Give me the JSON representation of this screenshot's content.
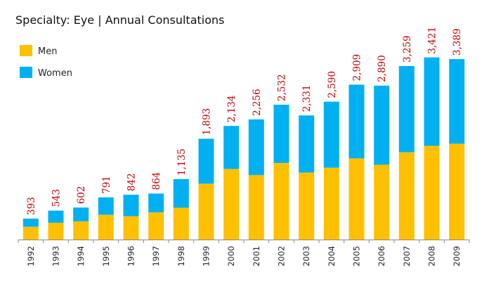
{
  "chart_data": {
    "type": "bar",
    "stacked": true,
    "title": "Specialty: Eye  |  Annual Consultations",
    "xlabel": "",
    "ylabel": "",
    "ylim": [
      0,
      3600
    ],
    "grid": false,
    "legend_position": "top-left",
    "categories": [
      "1992",
      "1993",
      "1994",
      "1995",
      "1996",
      "1997",
      "1998",
      "1999",
      "2000",
      "2001",
      "2002",
      "2003",
      "2004",
      "2005",
      "2006",
      "2007",
      "2008",
      "2009"
    ],
    "series": [
      {
        "name": "Men",
        "color": "#FFC000",
        "values": [
          240,
          315,
          345,
          465,
          440,
          510,
          600,
          1050,
          1325,
          1210,
          1440,
          1260,
          1350,
          1525,
          1405,
          1640,
          1760,
          1800
        ]
      },
      {
        "name": "Women",
        "color": "#00B0F0",
        "values": [
          153,
          228,
          257,
          326,
          402,
          354,
          535,
          843,
          809,
          1046,
          1092,
          1071,
          1240,
          1384,
          1485,
          1619,
          1661,
          1589
        ]
      }
    ],
    "totals": [
      "393",
      "543",
      "602",
      "791",
      "842",
      "864",
      "1,135",
      "1,893",
      "2,134",
      "2,256",
      "2,532",
      "2,331",
      "2,590",
      "2,909",
      "2,890",
      "3,259",
      "3,421",
      "3,389"
    ],
    "total_values": [
      393,
      543,
      602,
      791,
      842,
      864,
      1135,
      1893,
      2134,
      2256,
      2532,
      2331,
      2590,
      2909,
      2890,
      3259,
      3421,
      3389
    ],
    "total_label_color": "#C00000"
  }
}
